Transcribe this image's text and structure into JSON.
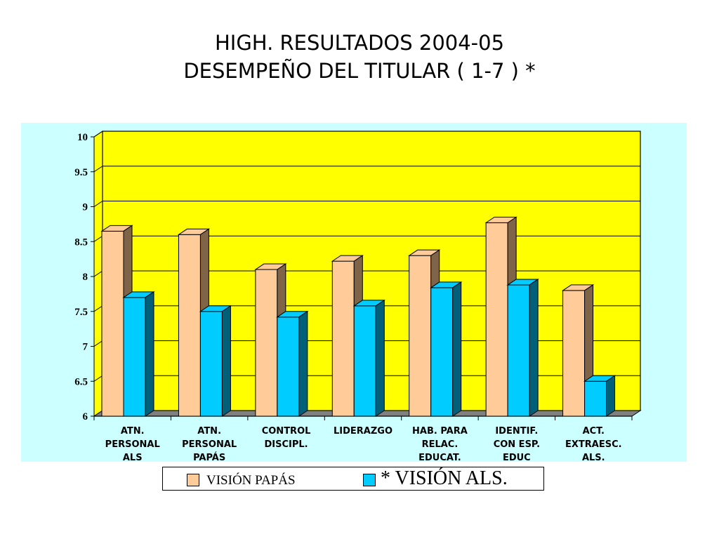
{
  "title": {
    "line1": "HIGH. RESULTADOS 2004-05",
    "line2": "DESEMPEÑO DEL TITULAR ( 1-7 ) *"
  },
  "colors": {
    "background_outer": "#ccffff",
    "plot_background": "#ffff00",
    "series_papas_front": "#ffcc99",
    "series_papas_side": "#7f6448",
    "series_als_front": "#00ccff",
    "series_als_side": "#00607a",
    "floor": "#808080"
  },
  "legend": {
    "items": [
      {
        "label": "VISIÓN PAPÁS",
        "color": "#ffcc99"
      },
      {
        "label": "* VISIÓN ALS.",
        "color": "#00ccff"
      }
    ]
  },
  "chart_data": {
    "type": "bar",
    "style": "3d-clustered",
    "title": "",
    "xlabel": "",
    "ylabel": "",
    "ylim": [
      6,
      10
    ],
    "yticks": [
      "6",
      "6.5",
      "7",
      "7.5",
      "8",
      "8.5",
      "9",
      "9.5",
      "10"
    ],
    "grid": true,
    "legend_position": "bottom",
    "categories": [
      [
        "ATN.",
        "PERSONAL",
        "ALS"
      ],
      [
        "ATN.",
        "PERSONAL",
        "PAPÁS"
      ],
      [
        "CONTROL",
        "DISCIPL."
      ],
      [
        "LIDERAZGO"
      ],
      [
        "HAB. PARA",
        "RELAC.",
        "EDUCAT."
      ],
      [
        "IDENTIF.",
        "CON ESP.",
        "EDUC"
      ],
      [
        "ACT.",
        "EXTRAESC.",
        "ALS."
      ]
    ],
    "series": [
      {
        "name": "VISIÓN PAPÁS",
        "values": [
          8.65,
          8.6,
          8.1,
          8.22,
          8.3,
          8.77,
          7.8
        ]
      },
      {
        "name": "* VISIÓN ALS.",
        "values": [
          7.7,
          7.5,
          7.42,
          7.58,
          7.84,
          7.88,
          6.5
        ]
      }
    ]
  }
}
